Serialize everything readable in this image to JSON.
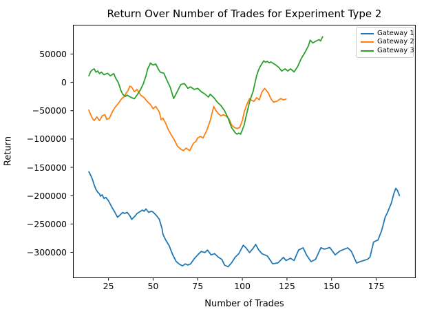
{
  "chart_data": {
    "type": "line",
    "title": "Return Over Number of Trades for Experiment Type 2",
    "xlabel": "Number of Trades",
    "ylabel": "Return",
    "xlim": [
      5.3,
      196.9
    ],
    "ylim": [
      -345000,
      101000
    ],
    "xticks": [
      25,
      50,
      75,
      100,
      125,
      150,
      175
    ],
    "yticks": [
      50000,
      0,
      -50000,
      -100000,
      -150000,
      -200000,
      -250000,
      -300000
    ],
    "grid": false,
    "legend_position": "upper right",
    "line_width": 1.8,
    "series": [
      {
        "name": "Gateway 1",
        "color": "#1f77b4",
        "points": [
          [
            14,
            -158000
          ],
          [
            15,
            -164000
          ],
          [
            16,
            -171000
          ],
          [
            17,
            -181000
          ],
          [
            18,
            -189000
          ],
          [
            19,
            -194000
          ],
          [
            20,
            -197000
          ],
          [
            20.5,
            -201000
          ],
          [
            21.5,
            -198500
          ],
          [
            22.5,
            -205000
          ],
          [
            23.5,
            -203000
          ],
          [
            25,
            -209000
          ],
          [
            26,
            -215000
          ],
          [
            27,
            -221000
          ],
          [
            28.5,
            -229000
          ],
          [
            30,
            -238000
          ],
          [
            31,
            -235500
          ],
          [
            33,
            -229500
          ],
          [
            34,
            -231500
          ],
          [
            35.5,
            -229500
          ],
          [
            37,
            -235500
          ],
          [
            38,
            -242000
          ],
          [
            40,
            -235500
          ],
          [
            41,
            -231500
          ],
          [
            42.5,
            -228500
          ],
          [
            44,
            -225500
          ],
          [
            45,
            -227500
          ],
          [
            46,
            -223500
          ],
          [
            47.5,
            -229500
          ],
          [
            49,
            -227500
          ],
          [
            50,
            -229000
          ],
          [
            52,
            -235500
          ],
          [
            53.5,
            -242000
          ],
          [
            55,
            -258000
          ],
          [
            55.5,
            -268000
          ],
          [
            57,
            -278000
          ],
          [
            59,
            -288500
          ],
          [
            61,
            -304500
          ],
          [
            63,
            -316500
          ],
          [
            65,
            -321500
          ],
          [
            66.5,
            -324000
          ],
          [
            68,
            -320500
          ],
          [
            69.5,
            -322500
          ],
          [
            71,
            -320500
          ],
          [
            73,
            -311500
          ],
          [
            75,
            -304500
          ],
          [
            77,
            -298500
          ],
          [
            79,
            -300500
          ],
          [
            80.5,
            -296000
          ],
          [
            82.5,
            -304500
          ],
          [
            84.5,
            -302500
          ],
          [
            86.5,
            -308500
          ],
          [
            88.5,
            -312500
          ],
          [
            90,
            -322500
          ],
          [
            92,
            -325500
          ],
          [
            94,
            -318500
          ],
          [
            96,
            -308500
          ],
          [
            98,
            -302500
          ],
          [
            100.5,
            -287500
          ],
          [
            102,
            -292000
          ],
          [
            104,
            -300500
          ],
          [
            106,
            -293000
          ],
          [
            107.5,
            -286000
          ],
          [
            109,
            -295000
          ],
          [
            111,
            -302500
          ],
          [
            114,
            -306500
          ],
          [
            117,
            -320500
          ],
          [
            120,
            -318500
          ],
          [
            123,
            -309000
          ],
          [
            124.5,
            -314500
          ],
          [
            127,
            -310500
          ],
          [
            129,
            -314500
          ],
          [
            131.5,
            -296000
          ],
          [
            134,
            -292000
          ],
          [
            136,
            -305000
          ],
          [
            138.5,
            -316500
          ],
          [
            141,
            -312500
          ],
          [
            144,
            -292000
          ],
          [
            146,
            -294500
          ],
          [
            149,
            -291500
          ],
          [
            152,
            -304500
          ],
          [
            154.5,
            -298000
          ],
          [
            159,
            -292000
          ],
          [
            161,
            -298000
          ],
          [
            164,
            -319000
          ],
          [
            166,
            -316500
          ],
          [
            170,
            -312500
          ],
          [
            171.5,
            -308500
          ],
          [
            173.5,
            -282000
          ],
          [
            176,
            -278000
          ],
          [
            178,
            -262000
          ],
          [
            180,
            -238000
          ],
          [
            181.5,
            -228000
          ],
          [
            183.5,
            -213000
          ],
          [
            185,
            -195000
          ],
          [
            186,
            -187000
          ],
          [
            187,
            -191500
          ],
          [
            188,
            -200000
          ]
        ]
      },
      {
        "name": "Gateway 2",
        "color": "#ff7f0e",
        "points": [
          [
            14,
            -49000
          ],
          [
            15,
            -57000
          ],
          [
            16,
            -63500
          ],
          [
            17,
            -67500
          ],
          [
            18.5,
            -61000
          ],
          [
            20,
            -67500
          ],
          [
            21.5,
            -59000
          ],
          [
            23,
            -57000
          ],
          [
            24,
            -65500
          ],
          [
            25.5,
            -63500
          ],
          [
            27,
            -53000
          ],
          [
            28.5,
            -45000
          ],
          [
            30,
            -39000
          ],
          [
            31,
            -35000
          ],
          [
            32.5,
            -28500
          ],
          [
            34,
            -24500
          ],
          [
            35,
            -18500
          ],
          [
            36,
            -14500
          ],
          [
            37,
            -6500
          ],
          [
            38,
            -8500
          ],
          [
            39.5,
            -16500
          ],
          [
            41,
            -12500
          ],
          [
            43,
            -22500
          ],
          [
            45,
            -27000
          ],
          [
            46.5,
            -33000
          ],
          [
            48.5,
            -39000
          ],
          [
            50,
            -46500
          ],
          [
            51.5,
            -42500
          ],
          [
            53.5,
            -52500
          ],
          [
            54.5,
            -66000
          ],
          [
            55.5,
            -63000
          ],
          [
            57,
            -72000
          ],
          [
            58.5,
            -83500
          ],
          [
            60,
            -92000
          ],
          [
            62,
            -102000
          ],
          [
            63.5,
            -112000
          ],
          [
            65.5,
            -118000
          ],
          [
            67,
            -120500
          ],
          [
            68.5,
            -116000
          ],
          [
            70.5,
            -120500
          ],
          [
            72.5,
            -108000
          ],
          [
            74,
            -104000
          ],
          [
            75,
            -98000
          ],
          [
            76.5,
            -95500
          ],
          [
            78,
            -98000
          ],
          [
            80,
            -85500
          ],
          [
            82,
            -67500
          ],
          [
            83,
            -55000
          ],
          [
            84,
            -42500
          ],
          [
            85,
            -49000
          ],
          [
            86.5,
            -55000
          ],
          [
            88,
            -59000
          ],
          [
            89.5,
            -57000
          ],
          [
            91,
            -60000
          ],
          [
            92.5,
            -64000
          ],
          [
            94,
            -75500
          ],
          [
            95.5,
            -79500
          ],
          [
            97,
            -81500
          ],
          [
            98.5,
            -80000
          ],
          [
            100,
            -67500
          ],
          [
            101,
            -53000
          ],
          [
            102.5,
            -39000
          ],
          [
            104,
            -28500
          ],
          [
            105,
            -31500
          ],
          [
            106.5,
            -33500
          ],
          [
            108,
            -27000
          ],
          [
            109.5,
            -31000
          ],
          [
            111,
            -17000
          ],
          [
            112.5,
            -10500
          ],
          [
            114.5,
            -18500
          ],
          [
            116,
            -29000
          ],
          [
            117.5,
            -35000
          ],
          [
            119.5,
            -33000
          ],
          [
            121.5,
            -28500
          ],
          [
            123,
            -31000
          ],
          [
            124.5,
            -29500
          ]
        ]
      },
      {
        "name": "Gateway 3",
        "color": "#2ca02c",
        "points": [
          [
            14,
            11500
          ],
          [
            15,
            19000
          ],
          [
            16,
            22000
          ],
          [
            17,
            24000
          ],
          [
            18,
            18000
          ],
          [
            19,
            20000
          ],
          [
            20,
            15500
          ],
          [
            21,
            18000
          ],
          [
            22.5,
            13500
          ],
          [
            24.5,
            16000
          ],
          [
            26,
            11500
          ],
          [
            28,
            15500
          ],
          [
            29,
            7500
          ],
          [
            30.5,
            -500
          ],
          [
            32,
            -14500
          ],
          [
            33,
            -21000
          ],
          [
            34.5,
            -25000
          ],
          [
            35.5,
            -22500
          ],
          [
            37,
            -25500
          ],
          [
            38,
            -27000
          ],
          [
            39.5,
            -29000
          ],
          [
            41,
            -22500
          ],
          [
            43,
            -12500
          ],
          [
            44.5,
            -2500
          ],
          [
            46,
            11500
          ],
          [
            47,
            24000
          ],
          [
            48,
            30000
          ],
          [
            48.5,
            34000
          ],
          [
            50,
            30500
          ],
          [
            51.5,
            32500
          ],
          [
            53,
            23000
          ],
          [
            54,
            18000
          ],
          [
            56,
            16000
          ],
          [
            58,
            2000
          ],
          [
            59.5,
            -8000
          ],
          [
            61.5,
            -28500
          ],
          [
            63.5,
            -16500
          ],
          [
            65.5,
            -4000
          ],
          [
            67.5,
            -2000
          ],
          [
            69.5,
            -10500
          ],
          [
            71,
            -8000
          ],
          [
            73,
            -12500
          ],
          [
            75,
            -10500
          ],
          [
            77,
            -16500
          ],
          [
            79,
            -20500
          ],
          [
            81,
            -26000
          ],
          [
            82,
            -21000
          ],
          [
            84,
            -27000
          ],
          [
            86,
            -35000
          ],
          [
            88,
            -41000
          ],
          [
            90,
            -50000
          ],
          [
            92,
            -63000
          ],
          [
            94,
            -80000
          ],
          [
            96,
            -89000
          ],
          [
            97,
            -91500
          ],
          [
            98,
            -89500
          ],
          [
            99,
            -91500
          ],
          [
            100,
            -84000
          ],
          [
            101,
            -75500
          ],
          [
            102,
            -61000
          ],
          [
            103,
            -48000
          ],
          [
            104,
            -35000
          ],
          [
            105,
            -25000
          ],
          [
            106,
            -16000
          ],
          [
            107,
            -2000
          ],
          [
            108,
            11500
          ],
          [
            109,
            21000
          ],
          [
            110,
            28000
          ],
          [
            111,
            33000
          ],
          [
            112,
            38000
          ],
          [
            113,
            35500
          ],
          [
            114,
            37000
          ],
          [
            115,
            34500
          ],
          [
            116,
            36000
          ],
          [
            117,
            34000
          ],
          [
            119,
            30000
          ],
          [
            120.5,
            26000
          ],
          [
            122,
            20000
          ],
          [
            124,
            24000
          ],
          [
            125.5,
            20000
          ],
          [
            127,
            24000
          ],
          [
            129,
            18500
          ],
          [
            131,
            28000
          ],
          [
            133,
            42000
          ],
          [
            135,
            52500
          ],
          [
            137,
            64500
          ],
          [
            138,
            74500
          ],
          [
            139.5,
            69500
          ],
          [
            141,
            72500
          ],
          [
            143,
            75500
          ],
          [
            143.8,
            73000
          ],
          [
            145,
            80500
          ]
        ]
      }
    ]
  }
}
